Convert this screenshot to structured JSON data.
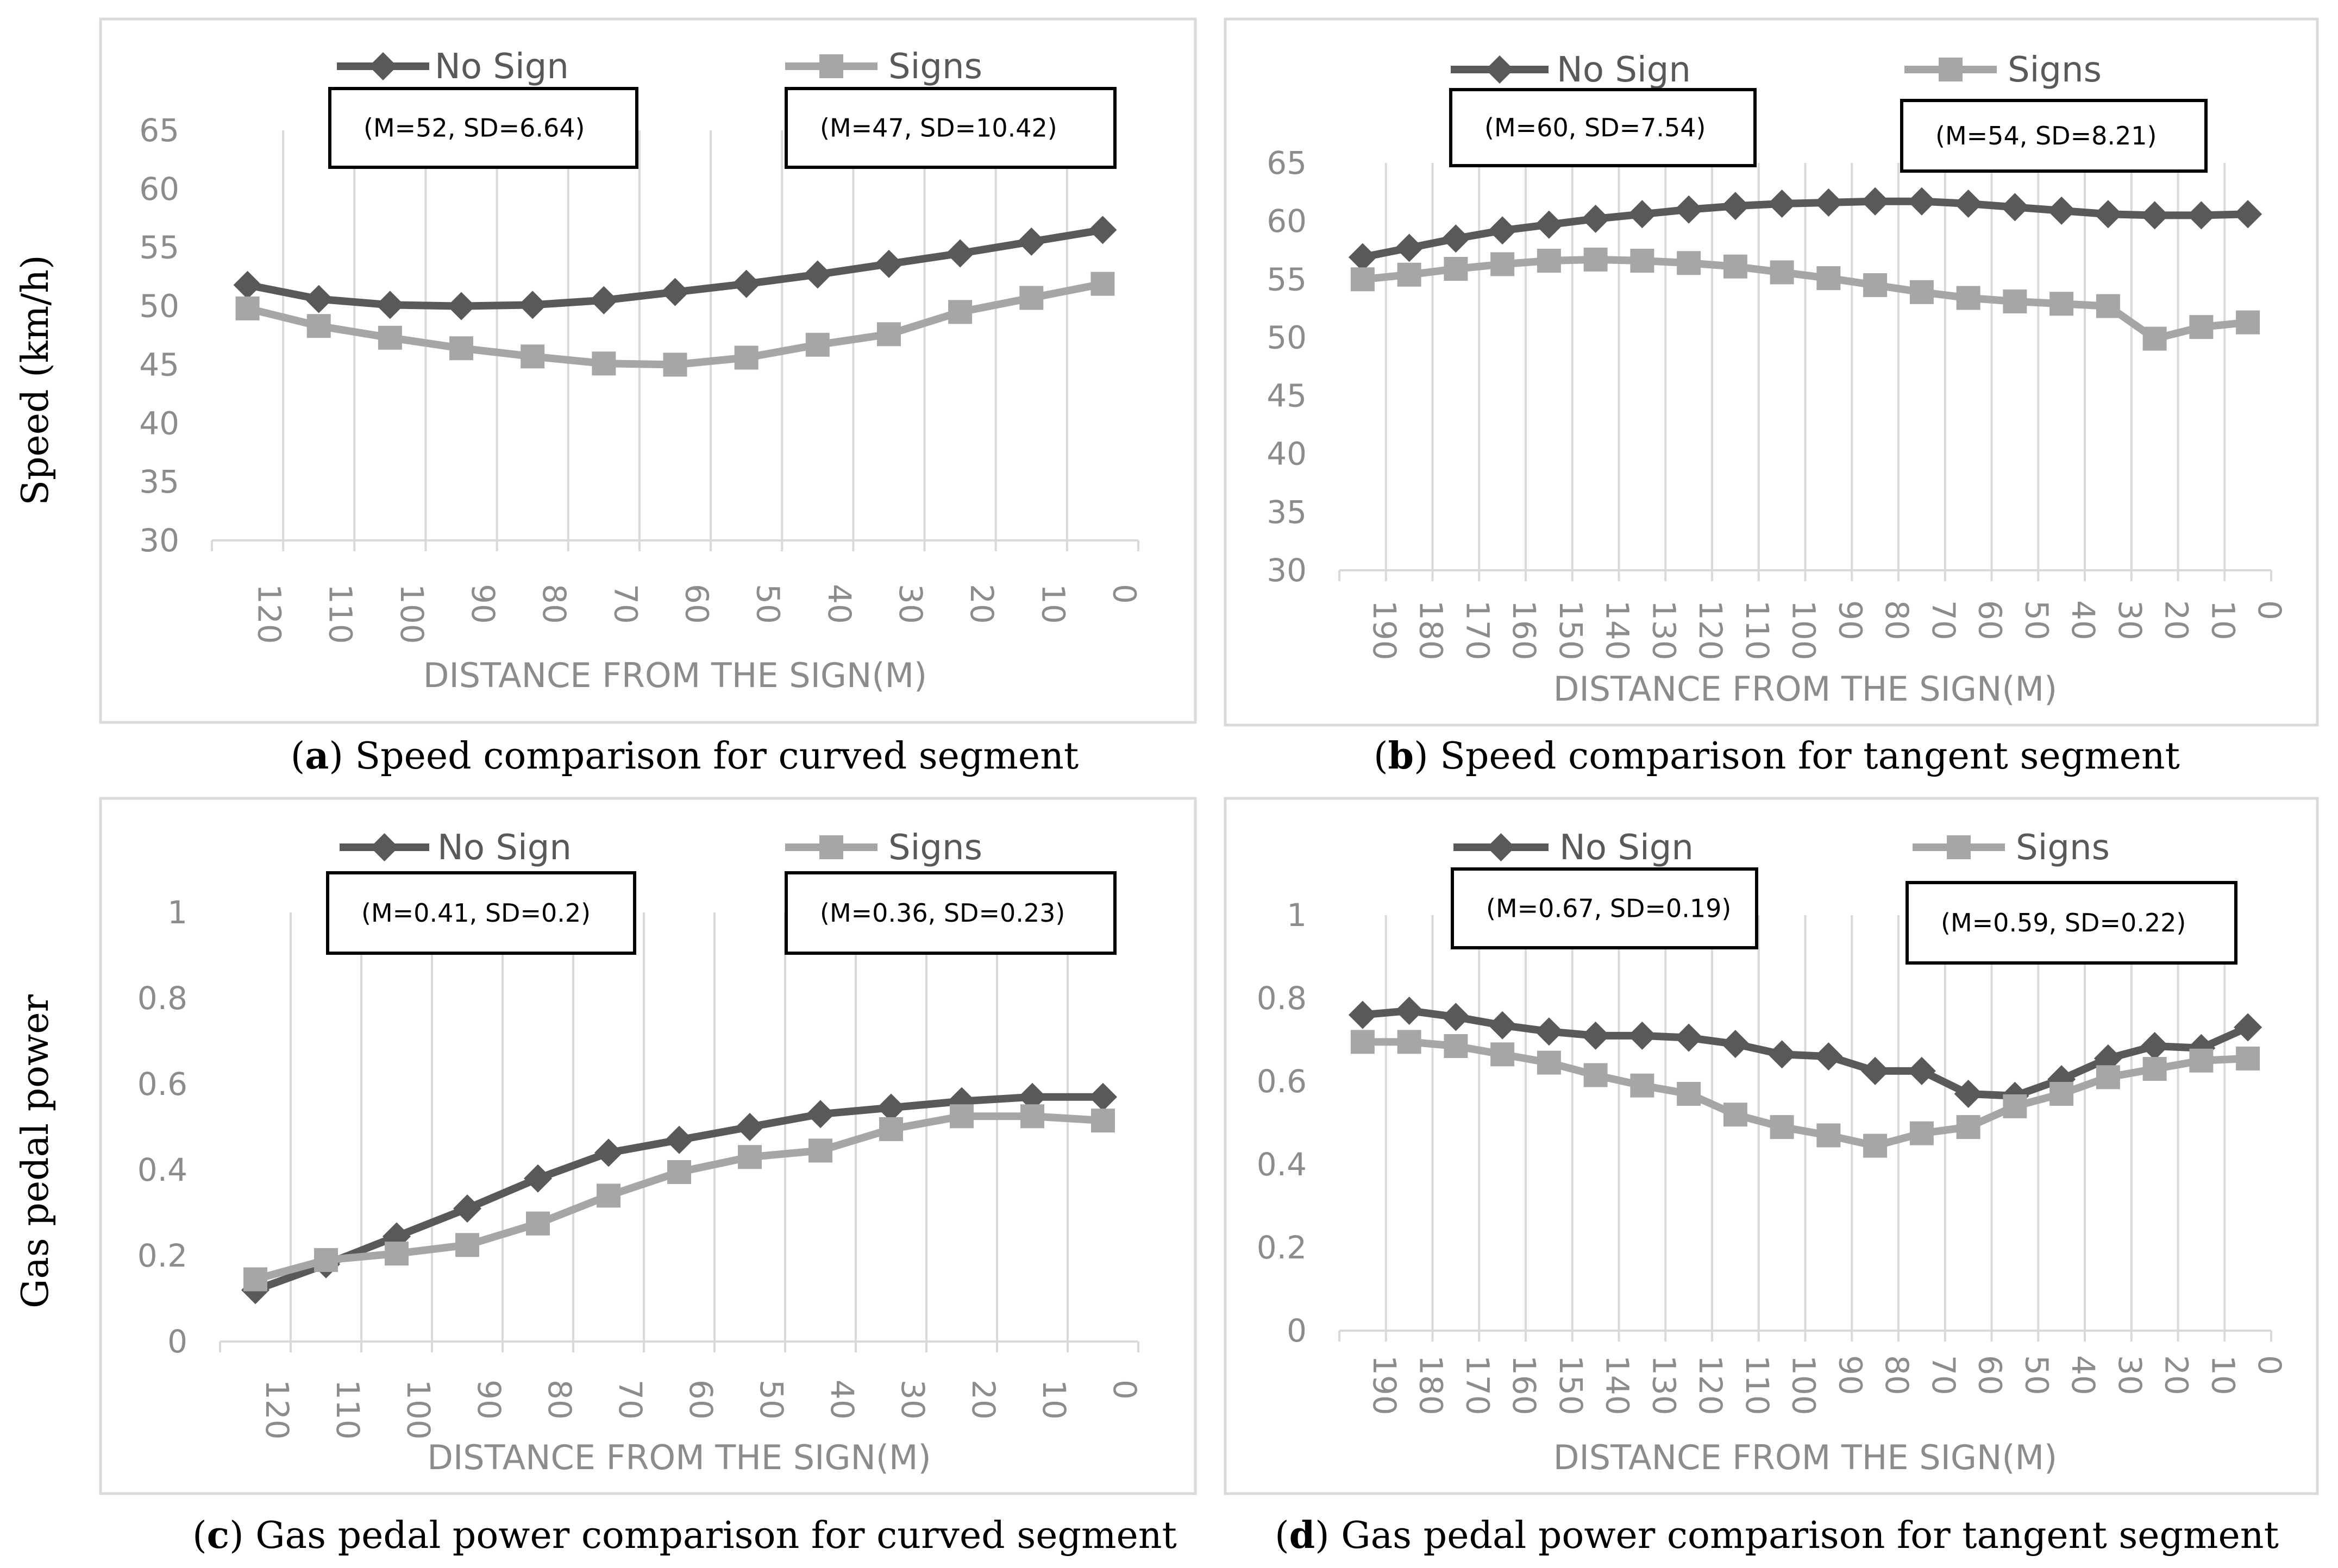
{
  "ylabels": {
    "speed": "Speed (km/h)",
    "gas": "Gas pedal power"
  },
  "colors": {
    "no_sign": "#595959",
    "signs": "#a6a6a6"
  },
  "chart_data": [
    {
      "id": "a",
      "type": "line",
      "caption_letter": "a",
      "caption_text": " Speed comparison for curved segment",
      "xlabel": "DISTANCE FROM THE SIGN(M)",
      "ylabel": "Speed (km/h)",
      "ylim": [
        30,
        65
      ],
      "yticks": [
        "65",
        "60",
        "55",
        "50",
        "45",
        "40",
        "35",
        "30"
      ],
      "grid": "vertical",
      "legend_position": "top",
      "categories": [
        "120",
        "110",
        "100",
        "90",
        "80",
        "70",
        "60",
        "50",
        "40",
        "30",
        "20",
        "10",
        "0"
      ],
      "series": [
        {
          "name": "No Sign",
          "values": [
            51.8,
            50.6,
            50.1,
            50.0,
            50.1,
            50.5,
            51.2,
            51.9,
            52.7,
            53.6,
            54.5,
            55.5,
            56.5
          ]
        },
        {
          "name": "Signs",
          "values": [
            49.8,
            48.3,
            47.3,
            46.4,
            45.7,
            45.1,
            45.0,
            45.6,
            46.7,
            47.6,
            49.5,
            50.7,
            51.9
          ]
        }
      ],
      "stats": [
        "(M=52, SD=6.64)",
        "(M=47, SD=10.42)"
      ]
    },
    {
      "id": "b",
      "type": "line",
      "caption_letter": "b",
      "caption_text": " Speed comparison for tangent segment",
      "xlabel": "DISTANCE FROM THE SIGN(M)",
      "ylim": [
        30,
        65
      ],
      "yticks": [
        "65",
        "60",
        "55",
        "50",
        "45",
        "40",
        "35",
        "30"
      ],
      "grid": "vertical",
      "legend_position": "top",
      "categories": [
        "190",
        "180",
        "170",
        "160",
        "150",
        "140",
        "130",
        "120",
        "110",
        "100",
        "90",
        "80",
        "70",
        "60",
        "50",
        "40",
        "30",
        "20",
        "10",
        "0"
      ],
      "series": [
        {
          "name": "No Sign",
          "values": [
            56.9,
            57.7,
            58.5,
            59.2,
            59.7,
            60.2,
            60.6,
            61.0,
            61.3,
            61.5,
            61.6,
            61.7,
            61.7,
            61.5,
            61.2,
            60.9,
            60.6,
            60.5,
            60.5,
            60.6
          ]
        },
        {
          "name": "Signs",
          "values": [
            55.0,
            55.4,
            55.9,
            56.3,
            56.6,
            56.7,
            56.6,
            56.4,
            56.1,
            55.6,
            55.1,
            54.5,
            53.9,
            53.4,
            53.1,
            52.9,
            52.7,
            49.9,
            50.9,
            51.3
          ]
        }
      ],
      "stats": [
        "(M=60, SD=7.54)",
        "(M=54, SD=8.21)"
      ]
    },
    {
      "id": "c",
      "type": "line",
      "caption_letter": "c",
      "caption_text": " Gas pedal power comparison for curved segment",
      "xlabel": "DISTANCE FROM THE SIGN(M)",
      "ylabel": "Gas pedal power",
      "ylim": [
        0,
        1
      ],
      "yticks": [
        "1",
        "0.8",
        "0.6",
        "0.4",
        "0.2",
        "0"
      ],
      "grid": "vertical",
      "legend_position": "top",
      "categories": [
        "120",
        "110",
        "100",
        "90",
        "80",
        "70",
        "60",
        "50",
        "40",
        "30",
        "20",
        "10",
        "0"
      ],
      "series": [
        {
          "name": "No Sign",
          "values": [
            0.12,
            0.18,
            0.245,
            0.31,
            0.38,
            0.44,
            0.47,
            0.5,
            0.53,
            0.545,
            0.56,
            0.57,
            0.57
          ]
        },
        {
          "name": "Signs",
          "values": [
            0.145,
            0.19,
            0.205,
            0.225,
            0.275,
            0.34,
            0.395,
            0.43,
            0.445,
            0.495,
            0.525,
            0.525,
            0.515
          ]
        }
      ],
      "stats": [
        "(M=0.41, SD=0.2)",
        "(M=0.36, SD=0.23)"
      ]
    },
    {
      "id": "d",
      "type": "line",
      "caption_letter": "d",
      "caption_text": " Gas pedal power comparison for tangent segment",
      "xlabel": "DISTANCE FROM THE SIGN(M)",
      "ylim": [
        0,
        1
      ],
      "yticks": [
        "1",
        "0.8",
        "0.6",
        "0.4",
        "0.2",
        "0"
      ],
      "grid": "vertical",
      "legend_position": "top",
      "categories": [
        "190",
        "180",
        "170",
        "160",
        "150",
        "140",
        "130",
        "120",
        "110",
        "100",
        "90",
        "80",
        "70",
        "60",
        "50",
        "40",
        "30",
        "20",
        "10",
        "0"
      ],
      "series": [
        {
          "name": "No Sign",
          "values": [
            0.76,
            0.77,
            0.755,
            0.735,
            0.72,
            0.71,
            0.71,
            0.705,
            0.69,
            0.665,
            0.66,
            0.625,
            0.625,
            0.57,
            0.565,
            0.605,
            0.655,
            0.685,
            0.68,
            0.73
          ]
        },
        {
          "name": "Signs",
          "values": [
            0.695,
            0.695,
            0.685,
            0.665,
            0.645,
            0.615,
            0.59,
            0.57,
            0.52,
            0.49,
            0.47,
            0.445,
            0.475,
            0.49,
            0.54,
            0.57,
            0.61,
            0.63,
            0.65,
            0.655
          ]
        }
      ],
      "stats": [
        "(M=0.67, SD=0.19)",
        "(M=0.59, SD=0.22)"
      ]
    }
  ]
}
